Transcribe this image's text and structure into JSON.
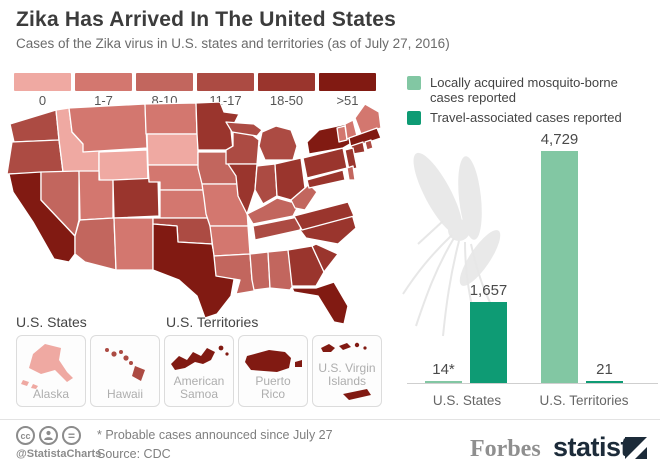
{
  "header": {
    "title": "Zika Has Arrived In The United States",
    "subtitle": "Cases of the Zika virus in U.S. states and territories (as of July 27, 2016)"
  },
  "map_legend": {
    "categories": [
      {
        "label": "0",
        "color": "#EFA9A2"
      },
      {
        "label": "1-7",
        "color": "#D3776F"
      },
      {
        "label": "8-10",
        "color": "#C2665E"
      },
      {
        "label": "11-17",
        "color": "#AC4B43"
      },
      {
        "label": "18-50",
        "color": "#9A352D"
      },
      {
        "label": ">51",
        "color": "#811A12"
      }
    ]
  },
  "chart_data": {
    "type": "bar",
    "title": "",
    "categories": [
      "U.S. States",
      "U.S. Territories"
    ],
    "series": [
      {
        "name": "Locally acquired mosquito-borne cases reported",
        "color": "#82C7A3",
        "values": [
          14,
          4729
        ],
        "display": [
          "14*",
          "4,729"
        ]
      },
      {
        "name": "Travel-associated cases reported",
        "color": "#0E9B74",
        "values": [
          1657,
          21
        ],
        "display": [
          "1,657",
          "21"
        ]
      }
    ],
    "ylim": [
      0,
      4729
    ],
    "grid": false,
    "legend_position": "top-right"
  },
  "map": {
    "states": [
      {
        "id": "WA",
        "name": "Washington",
        "category": 3
      },
      {
        "id": "OR",
        "name": "Oregon",
        "category": 3
      },
      {
        "id": "CA",
        "name": "California",
        "category": 5
      },
      {
        "id": "NV",
        "name": "Nevada",
        "category": 2
      },
      {
        "id": "ID",
        "name": "Idaho",
        "category": 0
      },
      {
        "id": "MT",
        "name": "Montana",
        "category": 1
      },
      {
        "id": "WY",
        "name": "Wyoming",
        "category": 0
      },
      {
        "id": "UT",
        "name": "Utah",
        "category": 1
      },
      {
        "id": "CO",
        "name": "Colorado",
        "category": 4
      },
      {
        "id": "AZ",
        "name": "Arizona",
        "category": 2
      },
      {
        "id": "NM",
        "name": "New Mexico",
        "category": 1
      },
      {
        "id": "ND",
        "name": "North Dakota",
        "category": 1
      },
      {
        "id": "SD",
        "name": "South Dakota",
        "category": 0
      },
      {
        "id": "NE",
        "name": "Nebraska",
        "category": 1
      },
      {
        "id": "KS",
        "name": "Kansas",
        "category": 1
      },
      {
        "id": "OK",
        "name": "Oklahoma",
        "category": 3
      },
      {
        "id": "TX",
        "name": "Texas",
        "category": 5
      },
      {
        "id": "MN",
        "name": "Minnesota",
        "category": 4
      },
      {
        "id": "IA",
        "name": "Iowa",
        "category": 2
      },
      {
        "id": "MO",
        "name": "Missouri",
        "category": 1
      },
      {
        "id": "WI",
        "name": "Wisconsin",
        "category": 3
      },
      {
        "id": "IL",
        "name": "Illinois",
        "category": 4
      },
      {
        "id": "MI",
        "name": "Michigan",
        "category": 3
      },
      {
        "id": "IN",
        "name": "Indiana",
        "category": 3
      },
      {
        "id": "OH",
        "name": "Ohio",
        "category": 4
      },
      {
        "id": "KY",
        "name": "Kentucky",
        "category": 2
      },
      {
        "id": "TN",
        "name": "Tennessee",
        "category": 3
      },
      {
        "id": "AR",
        "name": "Arkansas",
        "category": 1
      },
      {
        "id": "LA",
        "name": "Louisiana",
        "category": 2
      },
      {
        "id": "MS",
        "name": "Mississippi",
        "category": 2
      },
      {
        "id": "AL",
        "name": "Alabama",
        "category": 2
      },
      {
        "id": "GA",
        "name": "Georgia",
        "category": 4
      },
      {
        "id": "FL",
        "name": "Florida",
        "category": 5
      },
      {
        "id": "SC",
        "name": "South Carolina",
        "category": 4
      },
      {
        "id": "NC",
        "name": "North Carolina",
        "category": 4
      },
      {
        "id": "VA",
        "name": "Virginia",
        "category": 4
      },
      {
        "id": "WV",
        "name": "West Virginia",
        "category": 2
      },
      {
        "id": "PA",
        "name": "Pennsylvania",
        "category": 4
      },
      {
        "id": "NY",
        "name": "New York",
        "category": 5
      },
      {
        "id": "NJ",
        "name": "New Jersey",
        "category": 4
      },
      {
        "id": "MD",
        "name": "Maryland",
        "category": 4
      },
      {
        "id": "DE",
        "name": "Delaware",
        "category": 2
      },
      {
        "id": "CT",
        "name": "Connecticut",
        "category": 4
      },
      {
        "id": "RI",
        "name": "Rhode Island",
        "category": 3
      },
      {
        "id": "MA",
        "name": "Massachusetts",
        "category": 5
      },
      {
        "id": "VT",
        "name": "Vermont",
        "category": 1
      },
      {
        "id": "NH",
        "name": "New Hampshire",
        "category": 1
      },
      {
        "id": "ME",
        "name": "Maine",
        "category": 1
      }
    ]
  },
  "insets": {
    "states_header": "U.S. States",
    "territories_header": "U.S. Territories",
    "items": [
      {
        "id": "AK",
        "lines": [
          "Alaska"
        ],
        "category": 0
      },
      {
        "id": "HI",
        "lines": [
          "Hawaii"
        ],
        "category": 3
      },
      {
        "id": "AS",
        "lines": [
          "American",
          "Samoa"
        ],
        "category": 5
      },
      {
        "id": "PR",
        "lines": [
          "Puerto",
          "Rico"
        ],
        "category": 5
      },
      {
        "id": "VI",
        "lines": [
          "U.S. Virgin",
          "Islands"
        ],
        "category": 5
      }
    ]
  },
  "footer": {
    "license_icons": [
      "cc",
      "attribution-person",
      "no-derivatives-equals"
    ],
    "handle": "@StatistaCharts",
    "footnote": "* Probable cases announced since July 27",
    "source": "Source: CDC",
    "brands": [
      "Forbes",
      "statista"
    ],
    "brand_colors": {
      "statista_navy": "#1C2B39",
      "forbes_gray": "#8F8F8F"
    }
  }
}
